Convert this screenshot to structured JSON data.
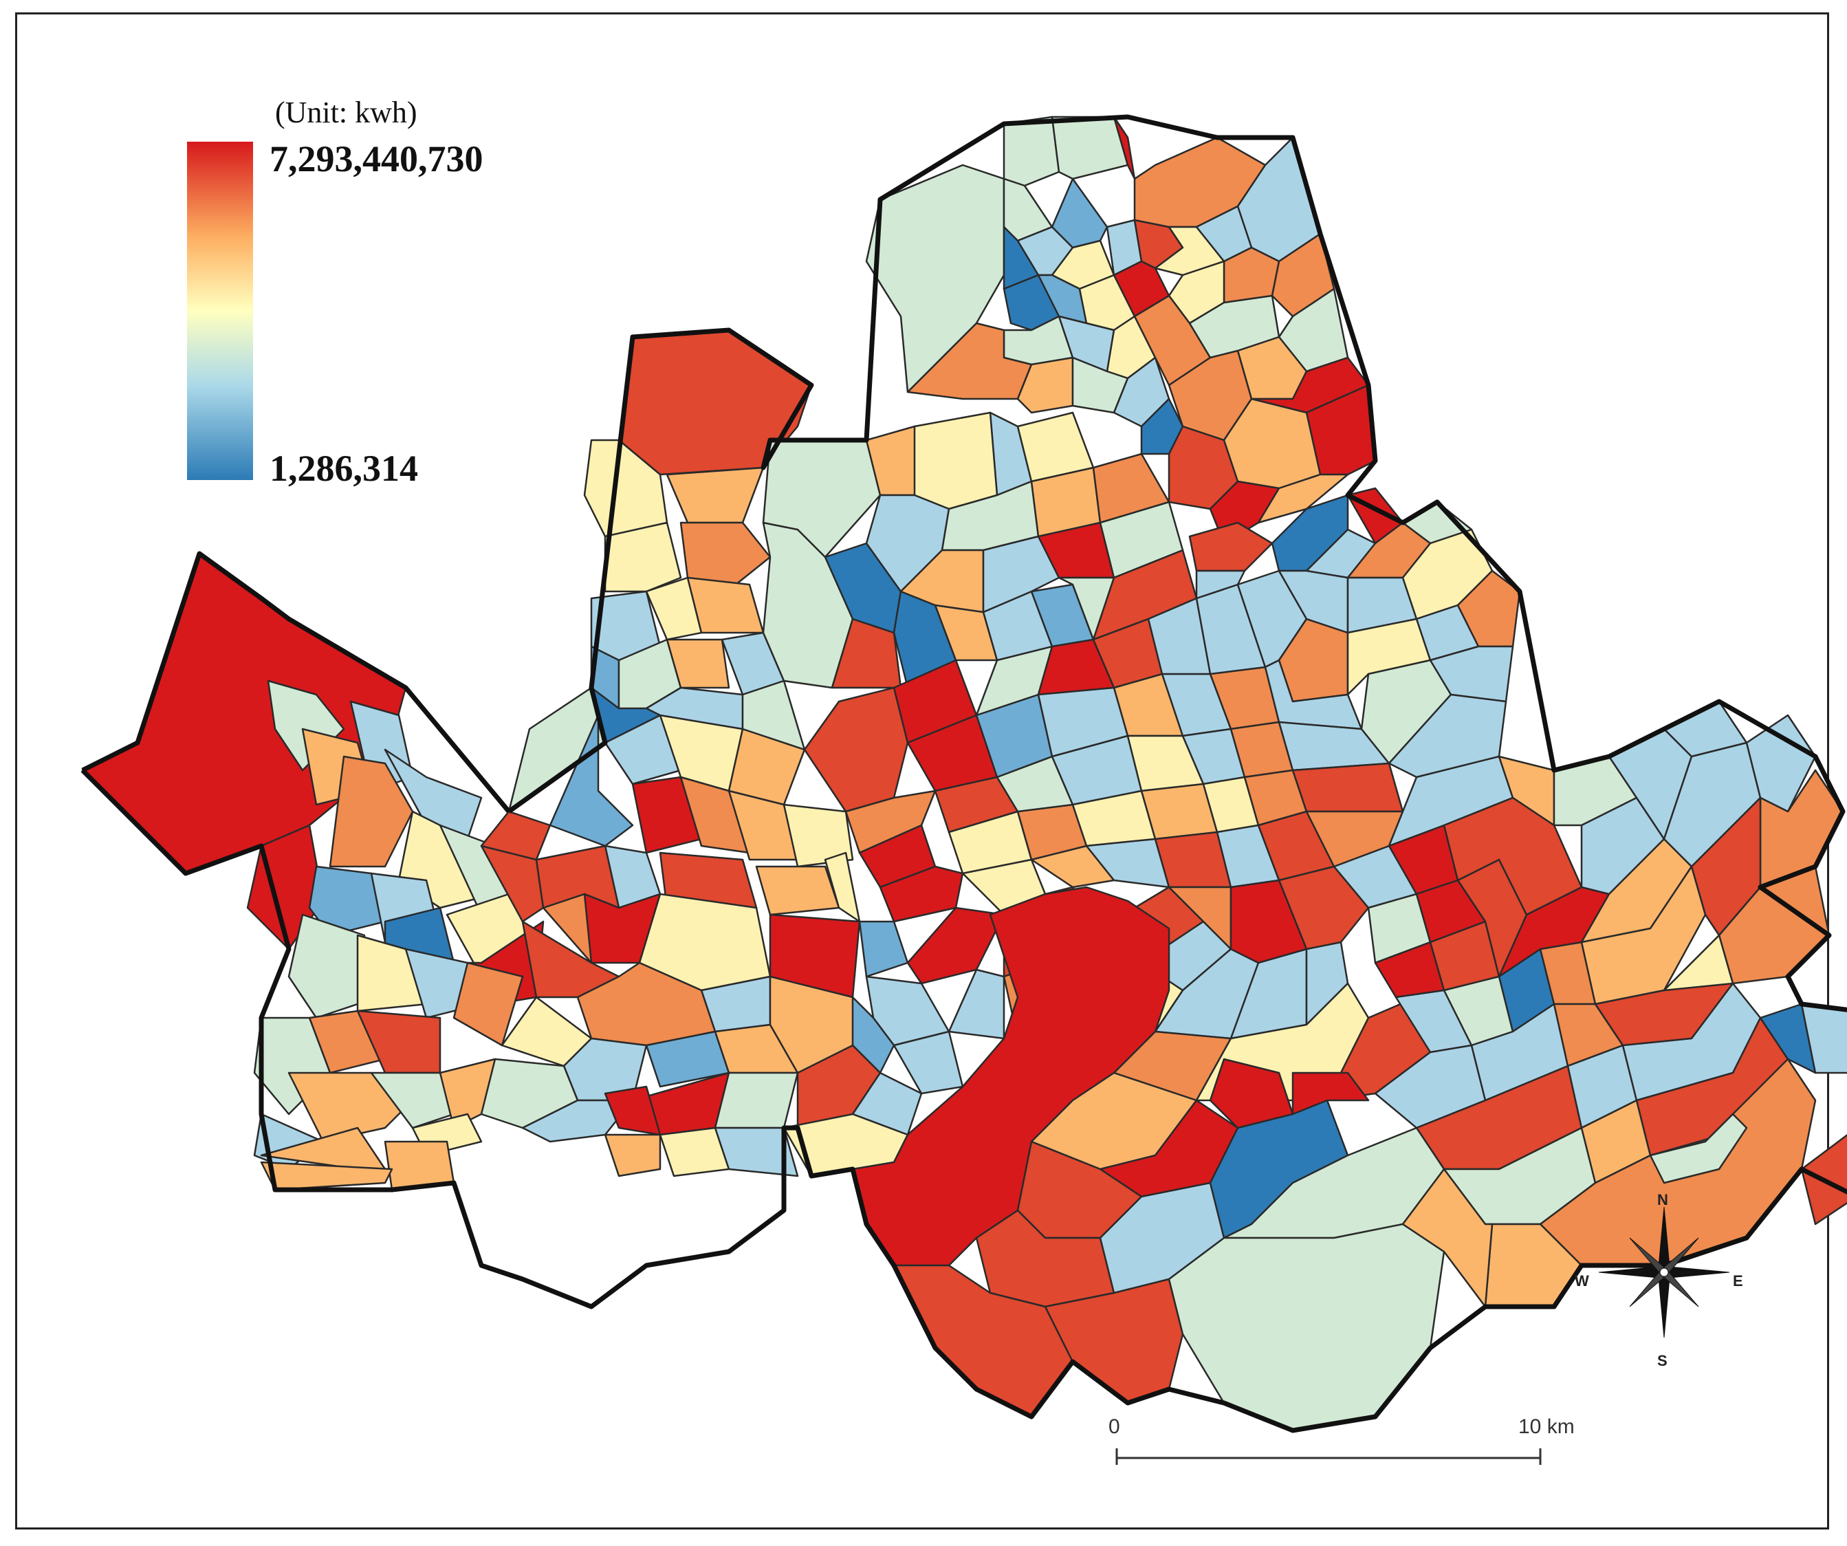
{
  "legend": {
    "unit": "(Unit: kwh)",
    "max_label": "7,293,440,730",
    "min_label": "1,286,314",
    "colors": [
      "#d7191c",
      "#fdae61",
      "#ffffbf",
      "#abd9e9",
      "#2c7bb6"
    ]
  },
  "scale_bar": {
    "start_label": "0",
    "end_label": "10 km"
  },
  "compass": {
    "north": "N",
    "south": "S",
    "east": "E",
    "west": "W",
    "icon": "compass-rose-icon"
  },
  "palette": {
    "red": "#d7191c",
    "red_orange": "#e0482f",
    "orange": "#f08c4f",
    "light_orange": "#fbb66c",
    "pale_yellow": "#fdf2b2",
    "pale_green": "#d2ead5",
    "light_blue": "#abd3e6",
    "mid_blue": "#6fadd4",
    "blue": "#2c7bb6"
  }
}
